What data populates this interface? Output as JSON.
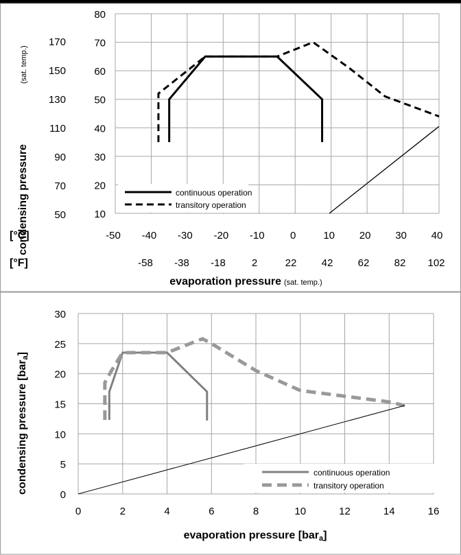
{
  "chart_data": [
    {
      "type": "line",
      "title": "",
      "units_row1_label": "[°C]",
      "units_row2_label": "[°F]",
      "ylabel_main": "condensing pressure",
      "ylabel_note": "(sat. temp.)",
      "xlabel_main": "evaporation pressure",
      "xlabel_note": "(sat. temp.)",
      "xlim": [
        -50,
        40
      ],
      "ylim": [
        10,
        80
      ],
      "x_ticks_c": [
        "-50",
        "-40",
        "-30",
        "-20",
        "-10",
        "0",
        "10",
        "20",
        "30",
        "40"
      ],
      "x_ticks_f": [
        "-58",
        "-38",
        "-18",
        "2",
        "22",
        "42",
        "62",
        "82",
        "102"
      ],
      "y_ticks_c": [
        "10",
        "20",
        "30",
        "40",
        "50",
        "60",
        "70",
        "80"
      ],
      "y_ticks_f": [
        "50",
        "70",
        "90",
        "110",
        "130",
        "150",
        "170"
      ],
      "grid": true,
      "legend_position": "bottom-left",
      "series": [
        {
          "name": "continuous operation",
          "style": "solid",
          "color": "#000000",
          "x": [
            -35,
            -35,
            -25,
            -5,
            7.5,
            7.5
          ],
          "y": [
            35,
            50,
            65,
            65,
            50,
            35
          ]
        },
        {
          "name": "transitory operation",
          "style": "dashed",
          "color": "#000000",
          "x": [
            -38,
            -38,
            -35,
            -30,
            -25,
            -5,
            5,
            15,
            25,
            40
          ],
          "y": [
            35,
            52,
            55,
            60,
            65,
            65,
            70,
            61,
            51,
            44
          ]
        },
        {
          "name": "",
          "style": "thin",
          "color": "#000000",
          "x": [
            9.5,
            40
          ],
          "y": [
            10,
            40.5
          ]
        }
      ]
    },
    {
      "type": "line",
      "title": "",
      "xlabel_main": "evaporation pressure [bar",
      "xlabel_sub": "a",
      "xlabel_end": "]",
      "ylabel_main": "condensing pressure [bar",
      "ylabel_sub": "a",
      "ylabel_end": "]",
      "xlim": [
        0,
        16
      ],
      "ylim": [
        0,
        30
      ],
      "x_ticks": [
        "0",
        "2",
        "4",
        "6",
        "8",
        "10",
        "12",
        "14",
        "16"
      ],
      "y_ticks": [
        "0",
        "5",
        "10",
        "15",
        "20",
        "25",
        "30"
      ],
      "grid": true,
      "legend_position": "bottom-right",
      "series": [
        {
          "name": "continuous operation",
          "style": "solid",
          "color": "#808080",
          "x": [
            1.4,
            1.4,
            2.0,
            4.0,
            5.8,
            5.8
          ],
          "y": [
            12.3,
            17.0,
            23.5,
            23.5,
            17.0,
            12.2
          ]
        },
        {
          "name": "transitory operation",
          "style": "dashed",
          "color": "#999999",
          "x": [
            1.2,
            1.2,
            1.5,
            2.0,
            4.0,
            5.6,
            6.0,
            8.0,
            10.0,
            14.0,
            14.7
          ],
          "y": [
            12.3,
            18.5,
            20.5,
            23.5,
            23.5,
            25.8,
            25.0,
            20.5,
            17.2,
            15.3,
            14.7
          ]
        },
        {
          "name": "",
          "style": "thin",
          "color": "#000000",
          "x": [
            0,
            14.7
          ],
          "y": [
            0,
            14.7
          ]
        }
      ]
    }
  ]
}
